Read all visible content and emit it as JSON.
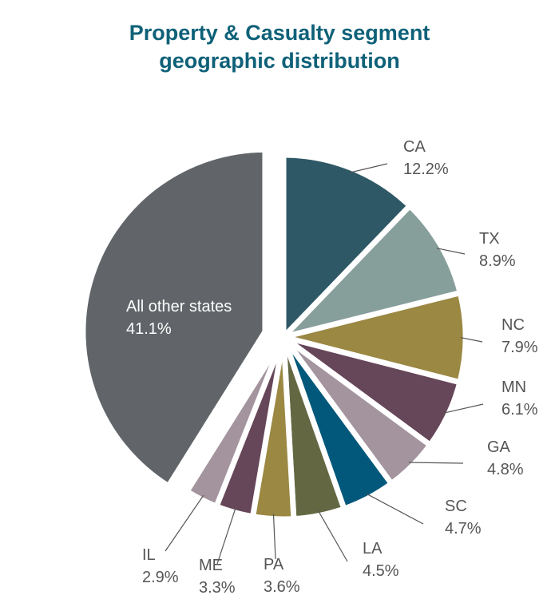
{
  "chart_data": {
    "type": "pie",
    "title_lines": [
      "Property & Casualty segment",
      "geographic distribution"
    ],
    "slices": [
      {
        "label": "CA",
        "value": 12.2,
        "value_label": "12.2%",
        "color": "#2e5866"
      },
      {
        "label": "TX",
        "value": 8.9,
        "value_label": "8.9%",
        "color": "#879f9b"
      },
      {
        "label": "NC",
        "value": 7.9,
        "value_label": "7.9%",
        "color": "#9a8843"
      },
      {
        "label": "MN",
        "value": 6.1,
        "value_label": "6.1%",
        "color": "#664659"
      },
      {
        "label": "GA",
        "value": 4.8,
        "value_label": "4.8%",
        "color": "#a3949e"
      },
      {
        "label": "SC",
        "value": 4.7,
        "value_label": "4.7%",
        "color": "#02587a"
      },
      {
        "label": "LA",
        "value": 4.5,
        "value_label": "4.5%",
        "color": "#636843"
      },
      {
        "label": "PA",
        "value": 3.6,
        "value_label": "3.6%",
        "color": "#9a8843"
      },
      {
        "label": "ME",
        "value": 3.3,
        "value_label": "3.3%",
        "color": "#664659"
      },
      {
        "label": "IL",
        "value": 2.9,
        "value_label": "2.9%",
        "color": "#a3949e"
      },
      {
        "label": "All other states",
        "value": 41.1,
        "value_label": "41.1%",
        "color": "#616569"
      }
    ]
  }
}
